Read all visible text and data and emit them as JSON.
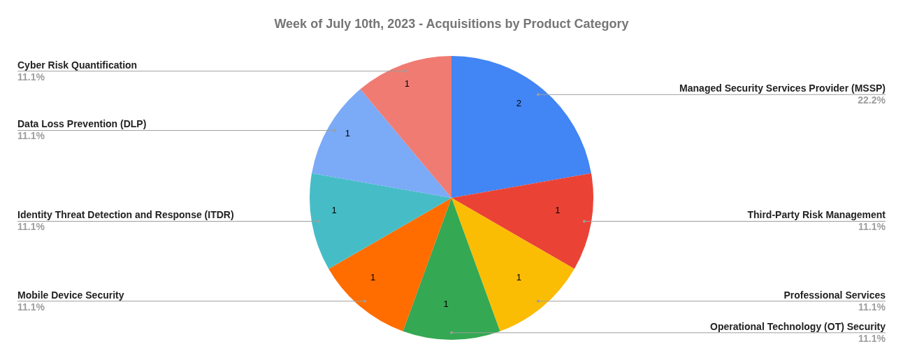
{
  "chart_data": {
    "type": "pie",
    "title": "Week of July 10th, 2023 - Acquisitions by Product Category",
    "categories": [
      "Managed Security Services Provider (MSSP)",
      "Third-Party Risk Management",
      "Professional Services",
      "Operational Technology (OT) Security",
      "Mobile Device Security",
      "Identity Threat Detection and Response (ITDR)",
      "Data Loss Prevention (DLP)",
      "Cyber Risk Quantification"
    ],
    "values": [
      2,
      1,
      1,
      1,
      1,
      1,
      1,
      1
    ],
    "colors": [
      "#4285f4",
      "#ea4335",
      "#fbbc04",
      "#34a853",
      "#ff6d01",
      "#46bdc6",
      "#7baaf7",
      "#f07b72"
    ],
    "annotations": [
      "22.2%",
      "11.1%",
      "11.1%",
      "11.1%",
      "11.1%",
      "11.1%",
      "11.1%",
      "11.1%"
    ],
    "data_labels": true,
    "legend": false
  }
}
